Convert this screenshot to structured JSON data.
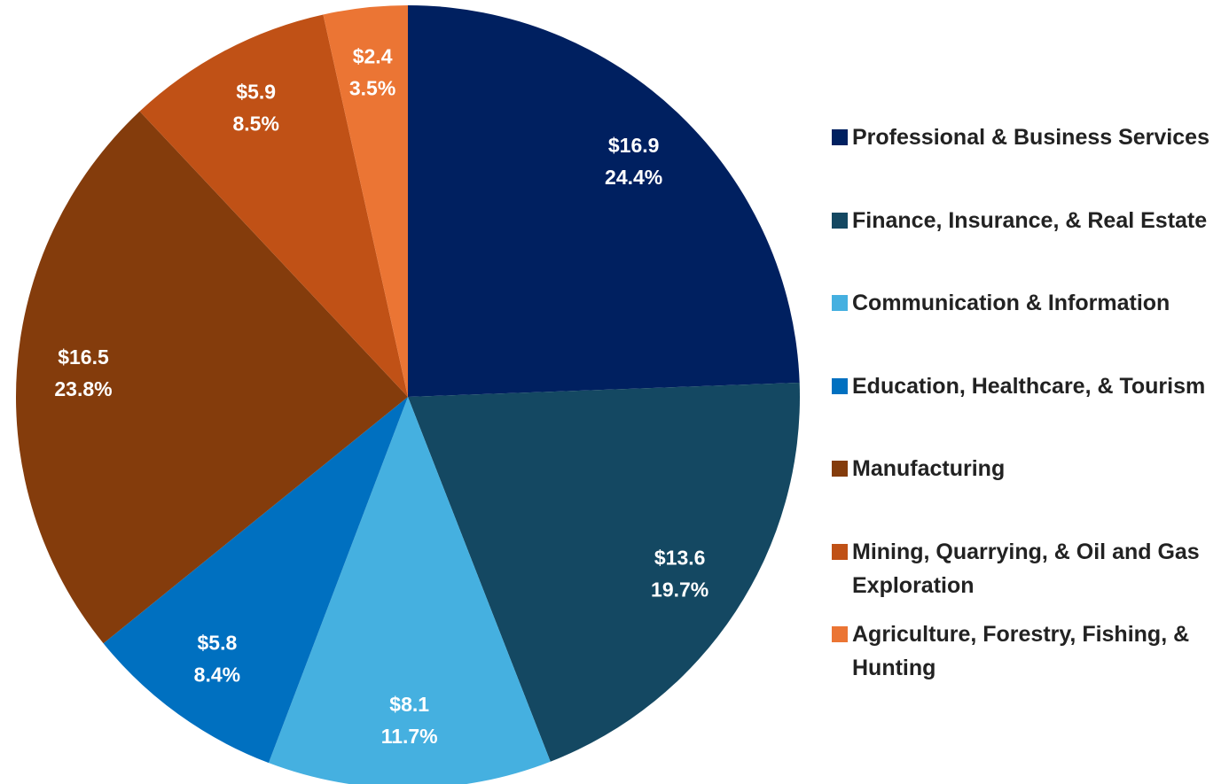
{
  "chart_data": {
    "type": "pie",
    "categories": [
      "Professional & Business Services",
      "Finance, Insurance, & Real Estate",
      "Communication & Information",
      "Education, Healthcare, & Tourism",
      "Manufacturing",
      "Mining, Quarrying, & Oil and Gas Exploration",
      "Agriculture, Forestry, Fishing, & Hunting"
    ],
    "values": [
      16.9,
      13.6,
      8.1,
      5.8,
      16.5,
      5.9,
      2.4
    ],
    "value_labels": [
      "$16.9",
      "$13.6",
      "$8.1",
      "$5.8",
      "$16.5",
      "$5.9",
      "$2.4"
    ],
    "shares": [
      24.4,
      19.7,
      11.7,
      8.4,
      23.8,
      8.5,
      3.5
    ],
    "share_labels": [
      "24.4%",
      "19.7%",
      "11.7%",
      "8.4%",
      "23.8%",
      "8.5%",
      "3.5%"
    ],
    "colors": [
      "#002060",
      "#144862",
      "#45b0e0",
      "#0070c0",
      "#843c0c",
      "#c05116",
      "#eb7534"
    ],
    "legend": "right"
  }
}
